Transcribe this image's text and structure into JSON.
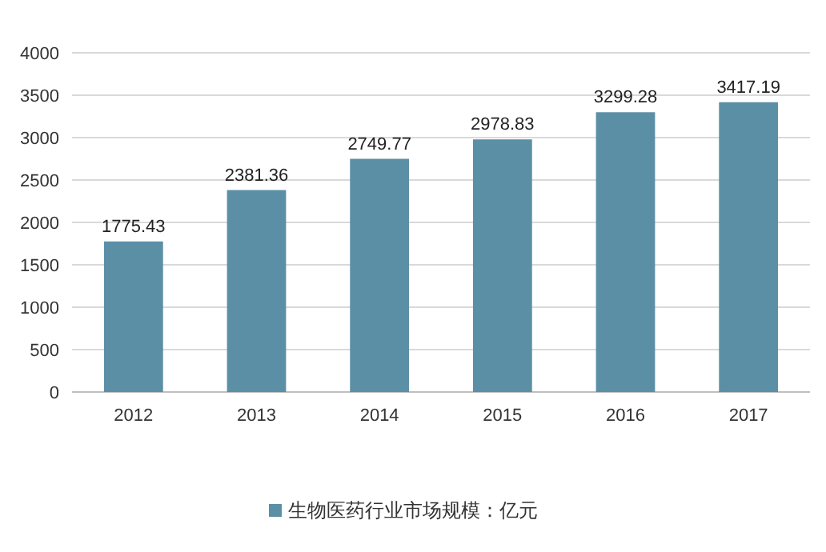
{
  "chart_data": {
    "type": "bar",
    "categories": [
      "2012",
      "2013",
      "2014",
      "2015",
      "2016",
      "2017"
    ],
    "series": [
      {
        "name": "生物医药行业市场规模：亿元",
        "color": "#5b8fa6",
        "values": [
          1775.43,
          2381.36,
          2749.77,
          2978.83,
          3299.28,
          3417.19
        ]
      }
    ],
    "ylim": [
      0,
      4000
    ],
    "yticks": [
      0,
      500,
      1000,
      1500,
      2000,
      2500,
      3000,
      3500,
      4000
    ],
    "grid": "y",
    "legend": "bottom",
    "data_labels": true
  }
}
